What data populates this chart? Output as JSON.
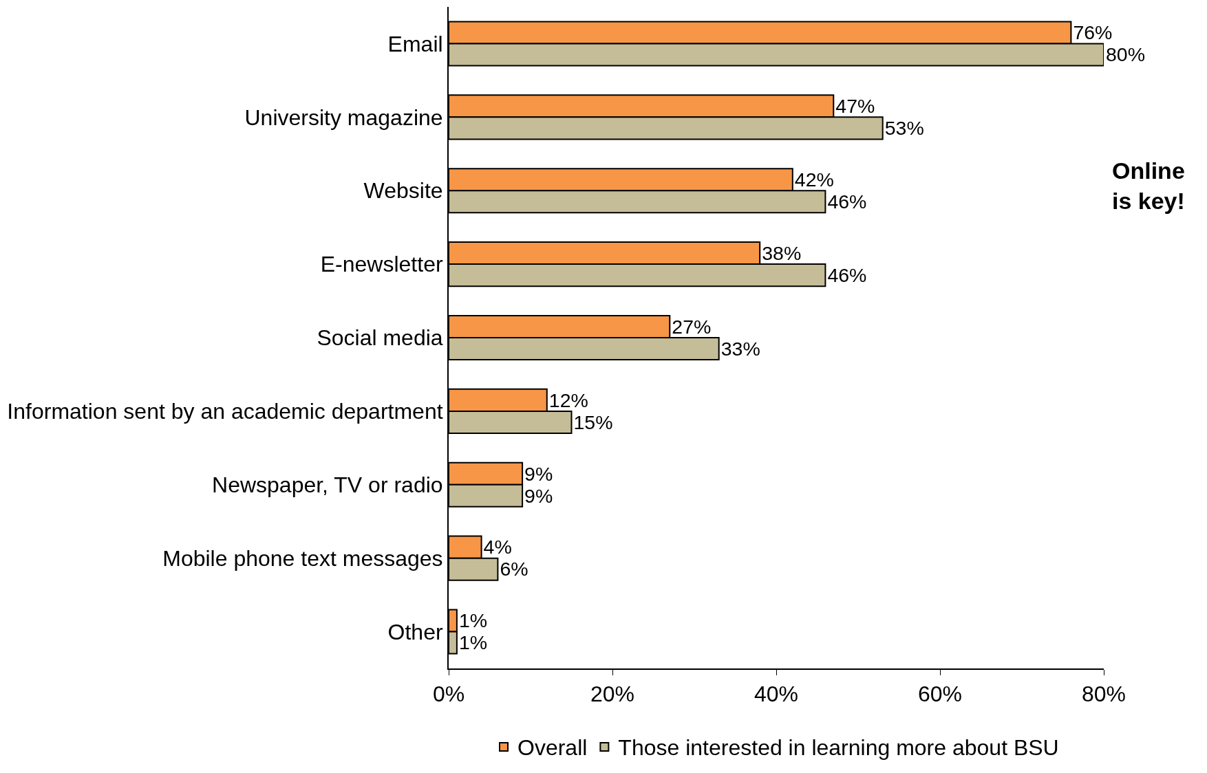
{
  "chart_data": {
    "type": "bar",
    "orientation": "horizontal",
    "categories": [
      "Email",
      "University magazine",
      "Website",
      "E-newsletter",
      "Social media",
      "Information sent by an academic department",
      "Newspaper, TV or radio",
      "Mobile phone text messages",
      "Other"
    ],
    "series": [
      {
        "name": "Overall",
        "color": "#f79646",
        "values": [
          76,
          47,
          42,
          38,
          27,
          12,
          9,
          4,
          1
        ],
        "value_labels": [
          "76%",
          "47%",
          "42%",
          "38%",
          "27%",
          "12%",
          "9%",
          "4%",
          "1%"
        ]
      },
      {
        "name": "Those interested in learning more about BSU",
        "color": "#c4bd97",
        "values": [
          80,
          53,
          46,
          46,
          33,
          15,
          9,
          6,
          1
        ],
        "value_labels": [
          "80%",
          "53%",
          "46%",
          "46%",
          "33%",
          "15%",
          "9%",
          "6%",
          "1%"
        ]
      }
    ],
    "xlim": [
      0,
      80
    ],
    "xticks": [
      {
        "value": 0,
        "label": "0%"
      },
      {
        "value": 20,
        "label": "20%"
      },
      {
        "value": 40,
        "label": "40%"
      },
      {
        "value": 60,
        "label": "60%"
      },
      {
        "value": 80,
        "label": "80%"
      }
    ],
    "legend": "bottom",
    "annotations": [
      "Online\nis key!"
    ]
  }
}
